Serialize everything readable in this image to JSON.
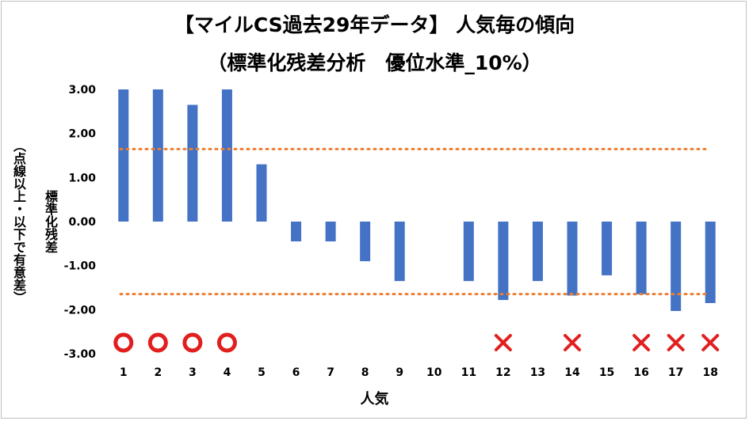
{
  "chart_data": {
    "type": "bar",
    "title": "【マイルCS過去29年データ】 人気毎の傾向",
    "subtitle": "（標準化残差分析　優位水準_10%）",
    "xlabel": "人気",
    "ylabel": "標準化残差",
    "ylabel_note": "（点線以上・以下で有意差）",
    "categories": [
      "1",
      "2",
      "3",
      "4",
      "5",
      "6",
      "7",
      "8",
      "9",
      "10",
      "11",
      "12",
      "13",
      "14",
      "15",
      "16",
      "17",
      "18"
    ],
    "values": [
      3.0,
      3.0,
      2.65,
      3.0,
      1.3,
      -0.45,
      -0.45,
      -0.9,
      -1.35,
      0.0,
      -1.35,
      -1.78,
      -1.35,
      -1.68,
      -1.22,
      -1.65,
      -2.03,
      -1.85
    ],
    "ylim": [
      -3.0,
      3.0
    ],
    "yticks": [
      "3.00",
      "2.00",
      "1.00",
      "0.00",
      "-1.00",
      "-2.00",
      "-3.00"
    ],
    "threshold": 1.645,
    "markers": [
      {
        "category": "1",
        "symbol": "circle"
      },
      {
        "category": "2",
        "symbol": "circle"
      },
      {
        "category": "3",
        "symbol": "circle"
      },
      {
        "category": "4",
        "symbol": "circle"
      },
      {
        "category": "12",
        "symbol": "cross"
      },
      {
        "category": "14",
        "symbol": "cross"
      },
      {
        "category": "16",
        "symbol": "cross"
      },
      {
        "category": "17",
        "symbol": "cross"
      },
      {
        "category": "18",
        "symbol": "cross"
      }
    ],
    "grid": false,
    "legend": "none",
    "colors": {
      "bar": "#4472c4",
      "threshold_line": "#ed7d31",
      "marker": "#e11f1f"
    }
  }
}
